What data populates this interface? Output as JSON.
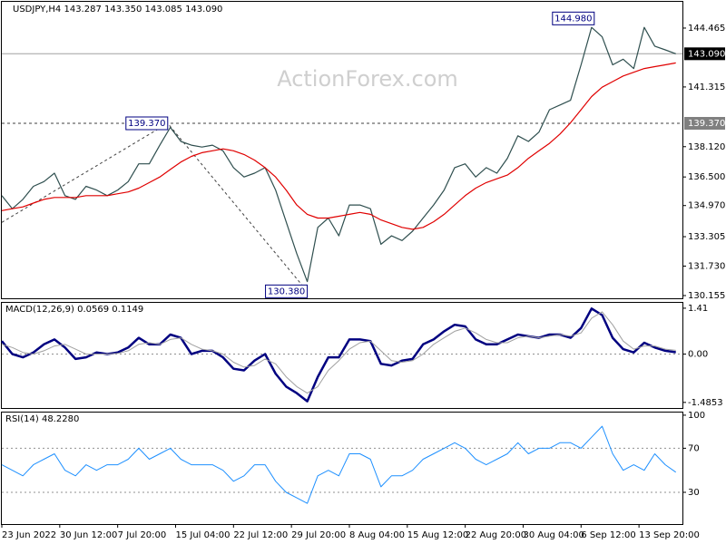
{
  "chart_data": [
    {
      "type": "line",
      "title": "USDJPY,H4 143.287 143.350 143.085 143.090",
      "watermark": "ActionForex.com",
      "xlim": [
        0,
        517
      ],
      "ylim": [
        129.96,
        145.87
      ],
      "yticks": [
        144.465,
        141.315,
        {
          "value": 138.12,
          "label": "138.120"
        },
        {
          "value": 136.5,
          "label": "136.500"
        },
        {
          "value": 134.97,
          "label": "134.970"
        },
        133.305,
        {
          "value": 131.73,
          "label": "131.730"
        },
        130.155
      ],
      "x": [
        0,
        8,
        16,
        24,
        32,
        40,
        48,
        56,
        64,
        72,
        80,
        88,
        96,
        104,
        112,
        120,
        128,
        136,
        144,
        152,
        160,
        168,
        176,
        184,
        192,
        200,
        208,
        216,
        224,
        232,
        240,
        248,
        256,
        264,
        272,
        280,
        288,
        296,
        304,
        312,
        320,
        328,
        336,
        344,
        352,
        360,
        368,
        376,
        384,
        392,
        400,
        408,
        416,
        424,
        432,
        440,
        448,
        456,
        464,
        472,
        480,
        488,
        496,
        504,
        512
      ],
      "series": [
        {
          "name": "USDJPY",
          "color": "#2f4f4f",
          "values": [
            135.5,
            134.8,
            135.3,
            136.0,
            136.25,
            136.7,
            135.5,
            135.3,
            136.0,
            135.8,
            135.5,
            135.8,
            136.25,
            137.2,
            137.2,
            138.2,
            139.15,
            138.4,
            138.2,
            138.1,
            138.2,
            137.9,
            137.0,
            136.5,
            136.7,
            137.0,
            135.8,
            134.1,
            132.4,
            130.9,
            133.8,
            134.3,
            133.35,
            135.0,
            135.0,
            134.8,
            132.9,
            133.35,
            133.1,
            133.6,
            134.3,
            135.0,
            135.8,
            137.0,
            137.2,
            136.5,
            137.0,
            136.7,
            137.5,
            138.7,
            138.4,
            138.9,
            140.1,
            140.35,
            140.6,
            142.5,
            144.5,
            144.0,
            142.5,
            142.8,
            142.3,
            144.5,
            143.5,
            143.3,
            143.09
          ]
        },
        {
          "name": "MA",
          "color": "#e00000",
          "values": [
            134.7,
            134.8,
            134.9,
            135.1,
            135.3,
            135.4,
            135.4,
            135.4,
            135.5,
            135.5,
            135.5,
            135.6,
            135.7,
            135.9,
            136.2,
            136.5,
            136.9,
            137.3,
            137.6,
            137.8,
            137.9,
            138.0,
            137.9,
            137.7,
            137.4,
            137.0,
            136.5,
            135.8,
            135.0,
            134.5,
            134.3,
            134.3,
            134.4,
            134.5,
            134.6,
            134.5,
            134.2,
            134.0,
            133.8,
            133.7,
            133.8,
            134.1,
            134.5,
            135.0,
            135.5,
            135.9,
            136.2,
            136.4,
            136.6,
            137.0,
            137.5,
            137.9,
            138.3,
            138.8,
            139.4,
            140.1,
            140.8,
            141.3,
            141.6,
            141.9,
            142.1,
            142.3,
            142.4,
            142.5,
            142.6
          ]
        }
      ],
      "hlines": [
        {
          "value": 143.09,
          "color": "#a0a0a0",
          "dashed": false
        },
        {
          "value": 139.37,
          "color": "#404040",
          "dashed": true
        }
      ],
      "price_labels": [
        {
          "value": 143.09,
          "label": "143.090",
          "background": "#000000",
          "color": "#ffffff"
        },
        {
          "value": 139.37,
          "label": "139.370",
          "background": "#808080",
          "color": "#ffffff"
        }
      ],
      "trendline": {
        "x": [
          0,
          126,
          232
        ],
        "values": [
          134.07,
          139.37,
          130.38
        ],
        "color": "#404040"
      },
      "annotations": [
        {
          "x": 450,
          "value": 144.98,
          "label": "144.980"
        },
        {
          "x": 126,
          "value": 139.37,
          "label": "139.370"
        },
        {
          "x": 232,
          "value": 130.38,
          "label": "130.380"
        }
      ]
    },
    {
      "type": "line",
      "title": "MACD(12,26,9) 0.0569 0.1149",
      "xlim": [
        0,
        517
      ],
      "ylim": [
        -1.685,
        1.575
      ],
      "yticks": [
        1.41,
        {
          "value": 0,
          "label": "0.00"
        },
        -1.4853
      ],
      "levels": [
        0
      ],
      "x": [
        0,
        8,
        16,
        24,
        32,
        40,
        48,
        56,
        64,
        72,
        80,
        88,
        96,
        104,
        112,
        120,
        128,
        136,
        144,
        152,
        160,
        168,
        176,
        184,
        192,
        200,
        208,
        216,
        224,
        232,
        240,
        248,
        256,
        264,
        272,
        280,
        288,
        296,
        304,
        312,
        320,
        328,
        336,
        344,
        352,
        360,
        368,
        376,
        384,
        392,
        400,
        408,
        416,
        424,
        432,
        440,
        448,
        456,
        464,
        472,
        480,
        488,
        496,
        504,
        512
      ],
      "series": [
        {
          "name": "MACD",
          "color": "#000080",
          "width": 2.5,
          "values": [
            0.4,
            0.0,
            -0.1,
            0.05,
            0.3,
            0.45,
            0.2,
            -0.15,
            -0.1,
            0.05,
            0.0,
            0.05,
            0.2,
            0.5,
            0.3,
            0.3,
            0.6,
            0.5,
            0.0,
            0.1,
            0.1,
            -0.1,
            -0.45,
            -0.5,
            -0.2,
            0.0,
            -0.6,
            -1.0,
            -1.2,
            -1.45,
            -0.7,
            -0.1,
            -0.1,
            0.45,
            0.45,
            0.4,
            -0.3,
            -0.35,
            -0.2,
            -0.15,
            0.3,
            0.45,
            0.7,
            0.9,
            0.85,
            0.45,
            0.3,
            0.3,
            0.45,
            0.6,
            0.55,
            0.5,
            0.6,
            0.6,
            0.5,
            0.8,
            1.4,
            1.2,
            0.5,
            0.15,
            0.05,
            0.35,
            0.2,
            0.1,
            0.0569
          ]
        },
        {
          "name": "Signal",
          "color": "#a0a0a0",
          "width": 1,
          "values": [
            0.3,
            0.2,
            0.05,
            0.0,
            0.1,
            0.25,
            0.3,
            0.15,
            0.0,
            0.0,
            0.0,
            0.02,
            0.1,
            0.3,
            0.35,
            0.3,
            0.45,
            0.5,
            0.3,
            0.15,
            0.1,
            0.0,
            -0.25,
            -0.4,
            -0.35,
            -0.15,
            -0.3,
            -0.7,
            -1.0,
            -1.2,
            -1.0,
            -0.5,
            -0.2,
            0.15,
            0.35,
            0.4,
            0.1,
            -0.2,
            -0.25,
            -0.2,
            0.0,
            0.3,
            0.5,
            0.7,
            0.8,
            0.65,
            0.45,
            0.35,
            0.35,
            0.5,
            0.55,
            0.5,
            0.55,
            0.6,
            0.55,
            0.65,
            1.1,
            1.3,
            0.9,
            0.4,
            0.15,
            0.25,
            0.25,
            0.15,
            0.1149
          ]
        }
      ]
    },
    {
      "type": "line",
      "title": "RSI(14) 48.2280",
      "xlim": [
        0,
        517
      ],
      "ylim": [
        1.2,
        102.4
      ],
      "yticks": [
        100,
        70,
        30
      ],
      "levels": [
        70,
        30
      ],
      "xticks": [
        {
          "value": 0,
          "label": "23 Jun 2022"
        },
        {
          "value": 44,
          "label": "30 Jun 12:00"
        },
        {
          "value": 88,
          "label": "7 Jul 20:00"
        },
        {
          "value": 132,
          "label": "15 Jul 04:00"
        },
        {
          "value": 176,
          "label": "22 Jul 12:00"
        },
        {
          "value": 220,
          "label": "29 Jul 20:00"
        },
        {
          "value": 264,
          "label": "8 Aug 04:00"
        },
        {
          "value": 308,
          "label": "15 Aug 12:00"
        },
        {
          "value": 352,
          "label": "22 Aug 20:00"
        },
        {
          "value": 396,
          "label": "30 Aug 04:00"
        },
        {
          "value": 440,
          "label": "6 Sep 12:00"
        },
        {
          "value": 484,
          "label": "13 Sep 20:00"
        }
      ],
      "x": [
        0,
        8,
        16,
        24,
        32,
        40,
        48,
        56,
        64,
        72,
        80,
        88,
        96,
        104,
        112,
        120,
        128,
        136,
        144,
        152,
        160,
        168,
        176,
        184,
        192,
        200,
        208,
        216,
        224,
        232,
        240,
        248,
        256,
        264,
        272,
        280,
        288,
        296,
        304,
        312,
        320,
        328,
        336,
        344,
        352,
        360,
        368,
        376,
        384,
        392,
        400,
        408,
        416,
        424,
        432,
        440,
        448,
        456,
        464,
        472,
        480,
        488,
        496,
        504,
        512
      ],
      "series": [
        {
          "name": "RSI",
          "color": "#1e90ff",
          "width": 1,
          "values": [
            55,
            50,
            45,
            55,
            60,
            65,
            50,
            45,
            55,
            50,
            55,
            55,
            60,
            70,
            60,
            65,
            70,
            60,
            55,
            55,
            55,
            50,
            40,
            45,
            55,
            55,
            40,
            30,
            25,
            20,
            45,
            50,
            45,
            65,
            65,
            60,
            35,
            45,
            45,
            50,
            60,
            65,
            70,
            75,
            70,
            60,
            55,
            60,
            65,
            75,
            65,
            70,
            70,
            75,
            75,
            70,
            80,
            90,
            65,
            50,
            55,
            50,
            65,
            55,
            48.228
          ]
        }
      ]
    }
  ]
}
